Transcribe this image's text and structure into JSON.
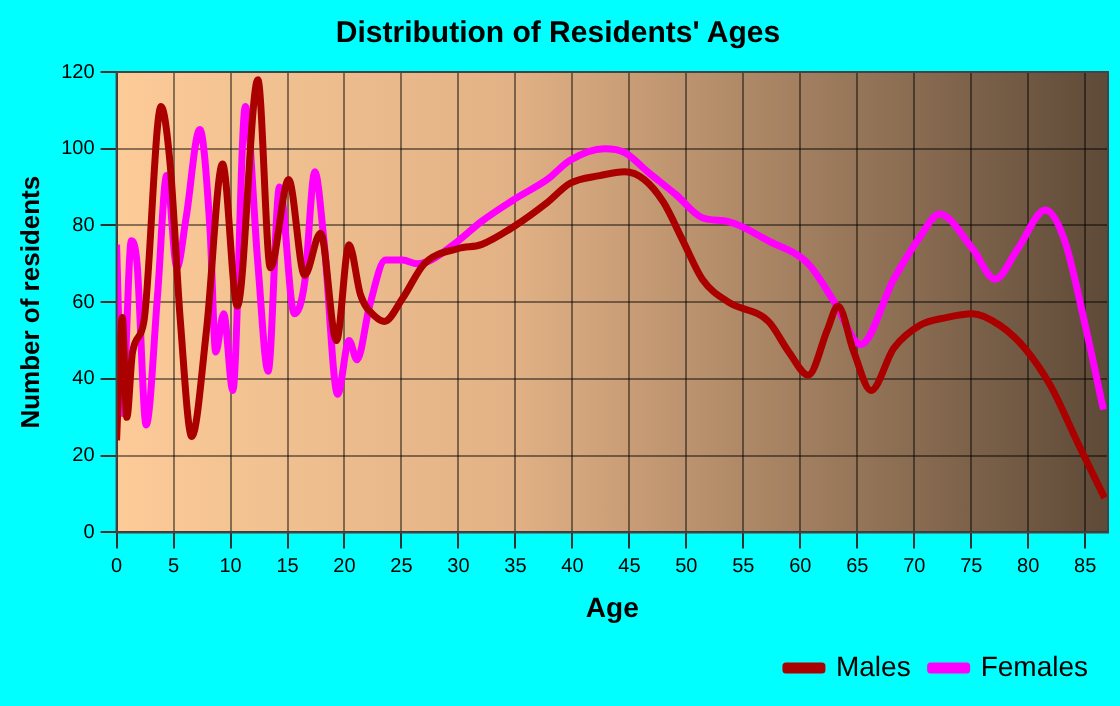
{
  "chart_data": {
    "type": "line",
    "title": "Distribution of Residents' Ages",
    "xlabel": "Age",
    "ylabel": "Number of residents",
    "xlim": [
      0,
      87
    ],
    "xticks": [
      0,
      5,
      10,
      15,
      20,
      25,
      30,
      35,
      40,
      45,
      50,
      55,
      60,
      65,
      70,
      75,
      80,
      85
    ],
    "ylim": [
      0,
      120
    ],
    "yticks": [
      0,
      20,
      40,
      60,
      80,
      100,
      120
    ],
    "grid": true,
    "legend": "bottom right",
    "marker": "none",
    "line_style": "solid",
    "series": [
      {
        "name": "Males",
        "color": "#aa0000",
        "x": [
          0,
          0.5,
          0.9,
          1.4,
          2.4,
          3.9,
          4.7,
          5.6,
          6.6,
          7.9,
          9.3,
          10.6,
          12.4,
          13.5,
          15.1,
          16.5,
          17.9,
          19.3,
          20.4,
          21.4,
          22.8,
          23.5,
          25.1,
          27,
          30,
          32,
          35,
          37.8,
          39.8,
          42.4,
          44.6,
          46.3,
          48,
          49.7,
          51.4,
          53.7,
          57.2,
          59,
          60.7,
          62.4,
          63.3,
          64.7,
          66.2,
          68.2,
          70.5,
          72.8,
          75.1,
          77.5,
          79.7,
          82,
          84.4,
          86.7
        ],
        "values": [
          24,
          56,
          30,
          47,
          55,
          111,
          96,
          55,
          25,
          53,
          96,
          59,
          118,
          69,
          92,
          67,
          78,
          50,
          75,
          62,
          56,
          55,
          61,
          70,
          74,
          75,
          80,
          86,
          91,
          93,
          94,
          92,
          86,
          76,
          66,
          60,
          55,
          47,
          41,
          53,
          59,
          47,
          37,
          48,
          54,
          56,
          57,
          54,
          48,
          38,
          23,
          9
        ]
      },
      {
        "name": "Females",
        "color": "#ff00ff",
        "x": [
          0,
          0.5,
          1.3,
          1.8,
          2.6,
          3.6,
          4.4,
          5.3,
          6.1,
          7.3,
          8.2,
          8.7,
          9.4,
          10.2,
          11.3,
          12.4,
          13.3,
          14.3,
          15.6,
          16.5,
          17.4,
          18.2,
          19.4,
          20.4,
          21.1,
          22.2,
          23.6,
          25.1,
          26.4,
          27.6,
          30,
          32,
          35,
          37.8,
          39.8,
          42.8,
          44.6,
          46.6,
          49.1,
          51.4,
          53.7,
          57.2,
          60.7,
          63,
          65.3,
          68.2,
          70.5,
          72.2,
          75.1,
          77.1,
          79.1,
          81.5,
          83.2,
          85,
          86.6
        ],
        "values": [
          75,
          31,
          76,
          70,
          28,
          62,
          93,
          69,
          82,
          105,
          79,
          47,
          57,
          37,
          111,
          70,
          42,
          90,
          57,
          65,
          94,
          76,
          36,
          50,
          45,
          59,
          71,
          71,
          70,
          71,
          76,
          81,
          87,
          92,
          97,
          100,
          99,
          94,
          88,
          82,
          81,
          76,
          70,
          60,
          49,
          66,
          77,
          83,
          74,
          66,
          74,
          84,
          76,
          54,
          32
        ]
      }
    ]
  }
}
